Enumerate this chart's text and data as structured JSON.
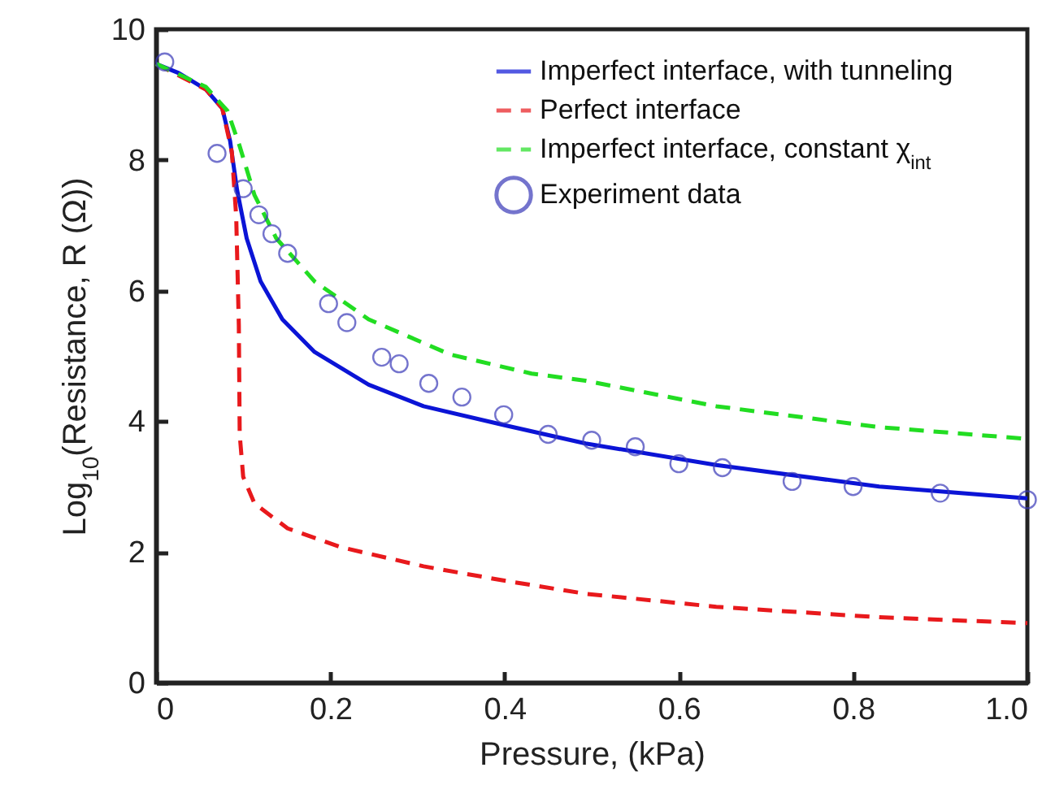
{
  "chart_data": {
    "type": "line",
    "xlabel": "Pressure, (kPa)",
    "ylabel": "Log$_{10}$(Resistance, R (Ω))",
    "xlim": [
      0,
      1
    ],
    "ylim": [
      0,
      10
    ],
    "xticks": [
      0,
      0.2,
      0.4,
      0.6,
      0.8,
      {
        "value": 1,
        "label": "1.0"
      }
    ],
    "yticks": [
      0,
      2,
      4,
      6,
      8,
      10
    ],
    "grid": false,
    "legend": "top right",
    "series": [
      {
        "name": "Imperfect interface, with tunneling",
        "color": "#0b14d6",
        "line_style": "solid",
        "marker": "none",
        "x": [
          0,
          0.026,
          0.057,
          0.076,
          0.085,
          0.093,
          0.104,
          0.12,
          0.145,
          0.182,
          0.244,
          0.307,
          0.4,
          0.493,
          0.643,
          0.83,
          1.0
        ],
        "values": [
          9.47,
          9.33,
          9.08,
          8.79,
          8.29,
          7.54,
          6.8,
          6.14,
          5.56,
          5.06,
          4.56,
          4.23,
          3.94,
          3.66,
          3.33,
          3.0,
          2.82
        ]
      },
      {
        "name": "Perfect interface",
        "color": "#e8191c",
        "line_style": "dashed",
        "marker": "none",
        "x": [
          0,
          0.057,
          0.076,
          0.087,
          0.092,
          0.095,
          0.096,
          0.1,
          0.113,
          0.151,
          0.213,
          0.307,
          0.4,
          0.493,
          0.643,
          0.83,
          1.0
        ],
        "values": [
          9.47,
          9.08,
          8.79,
          8.12,
          7.13,
          5.47,
          3.8,
          3.15,
          2.74,
          2.36,
          2.07,
          1.78,
          1.56,
          1.36,
          1.16,
          1.0,
          0.91
        ]
      },
      {
        "name": "Imperfect interface, constant χ$_{int}$",
        "color": "#22dd22",
        "line_style": "dashed",
        "marker": "none",
        "x": [
          0,
          0.057,
          0.082,
          0.096,
          0.113,
          0.138,
          0.182,
          0.244,
          0.338,
          0.431,
          0.493,
          0.643,
          0.83,
          1.0
        ],
        "values": [
          9.47,
          9.12,
          8.75,
          8.21,
          7.46,
          6.8,
          6.14,
          5.56,
          5.02,
          4.73,
          4.62,
          4.23,
          3.91,
          3.73
        ]
      },
      {
        "name": "Experiment data",
        "type": "scatter",
        "color": "#3a3ab8",
        "marker": "circle",
        "x": [
          0.01,
          0.07,
          0.1,
          0.118,
          0.133,
          0.151,
          0.198,
          0.219,
          0.259,
          0.279,
          0.313,
          0.351,
          0.399,
          0.45,
          0.5,
          0.55,
          0.6,
          0.65,
          0.73,
          0.8,
          0.9,
          1.0
        ],
        "values": [
          9.5,
          8.1,
          7.56,
          7.16,
          6.87,
          6.57,
          5.8,
          5.51,
          4.98,
          4.88,
          4.58,
          4.37,
          4.1,
          3.8,
          3.71,
          3.61,
          3.35,
          3.29,
          3.08,
          3.0,
          2.9,
          2.8
        ]
      }
    ]
  }
}
